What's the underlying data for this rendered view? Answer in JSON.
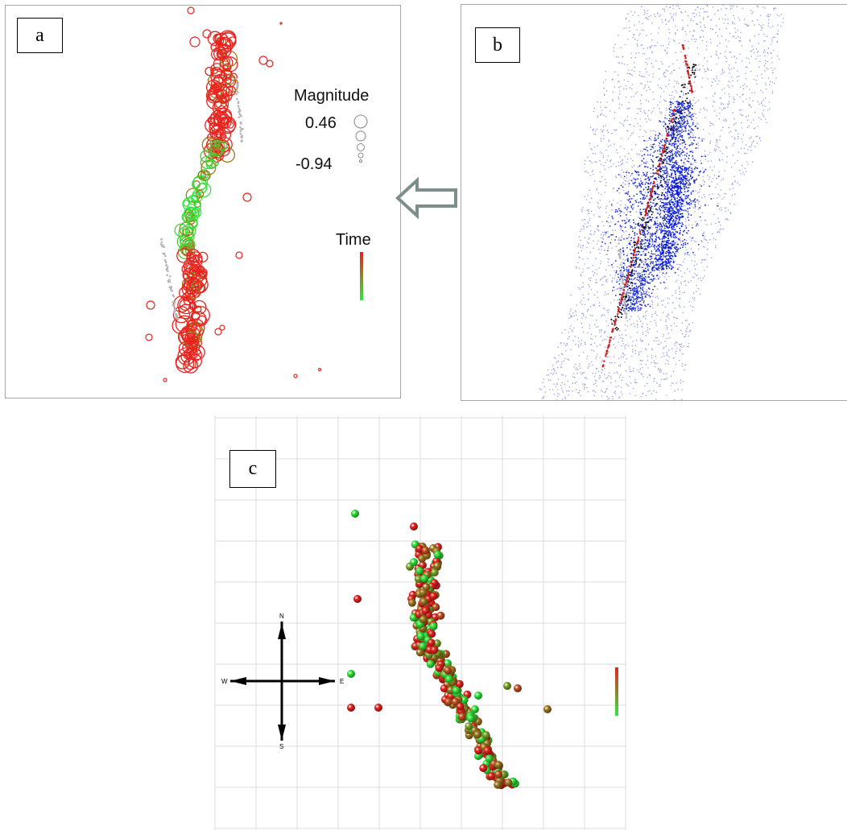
{
  "panels": {
    "a": {
      "letter": "a"
    },
    "b": {
      "letter": "b"
    },
    "c": {
      "letter": "c"
    }
  },
  "legend": {
    "magnitude_title": "Magnitude",
    "magnitude_max": "0.46",
    "magnitude_min": "-0.94",
    "time_title": "Time"
  },
  "compass": {
    "n": "N",
    "s": "S",
    "e": "E",
    "w": "W"
  },
  "colors": {
    "early": "#e8231e",
    "late": "#2fe83a",
    "mid": "#a0781e",
    "gray_track": "#b8b8b8",
    "density_dark": "#1a2ccf",
    "density_light": "#9ea6e6",
    "arrow": "#7b8f8d",
    "grid": "#dcdcdc"
  }
}
